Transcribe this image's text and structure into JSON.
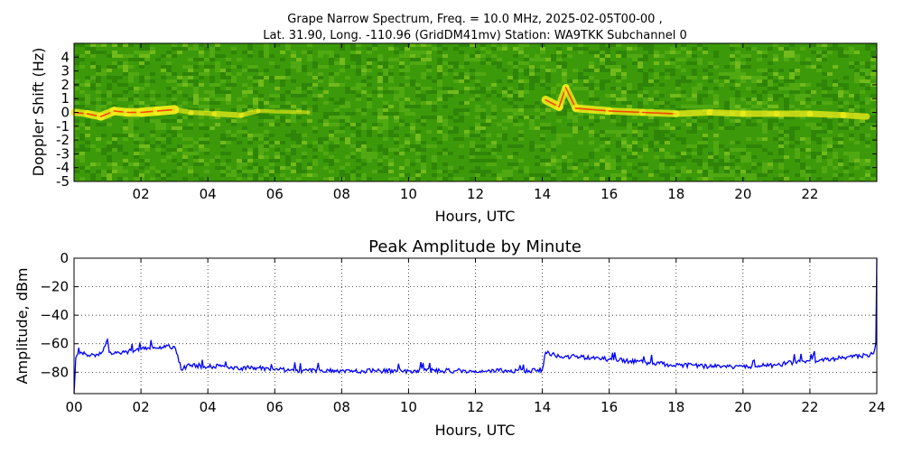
{
  "chart_data": [
    {
      "type": "heatmap",
      "title_line1": "Grape Narrow Spectrum, Freq. = 10.0 MHz, 2025-02-05T00-00 ,",
      "title_line2": "Lat.  31.90, Long. -110.96 (GridDM41mv) Station: WA9TKK Subchannel 0",
      "xlabel": "Hours, UTC",
      "ylabel": "Doppler Shift (Hz)",
      "xlim": [
        0,
        24
      ],
      "ylim": [
        -5,
        5
      ],
      "xticks": [
        2,
        4,
        6,
        8,
        10,
        12,
        14,
        16,
        18,
        20,
        22
      ],
      "xtick_labels": [
        "02",
        "04",
        "06",
        "08",
        "10",
        "12",
        "14",
        "16",
        "18",
        "20",
        "22"
      ],
      "yticks": [
        4,
        3,
        2,
        1,
        0,
        -1,
        -2,
        -3,
        -4,
        -5
      ],
      "ytick_labels": [
        "4",
        "3",
        "2",
        "1",
        "0",
        "-1",
        "-2",
        "-3",
        "-4",
        "-5"
      ],
      "background_color": "#3c9a0a",
      "signal_colors": [
        "#f4f01a",
        "#ff2a00"
      ],
      "signal_trace": [
        {
          "t": 0.0,
          "f": 0.0,
          "s": 0.6
        },
        {
          "t": 0.4,
          "f": -0.1,
          "s": 0.7
        },
        {
          "t": 0.8,
          "f": -0.3,
          "s": 0.8
        },
        {
          "t": 1.2,
          "f": 0.1,
          "s": 0.9
        },
        {
          "t": 1.6,
          "f": 0.0,
          "s": 0.8
        },
        {
          "t": 2.0,
          "f": 0.0,
          "s": 0.9
        },
        {
          "t": 2.5,
          "f": 0.1,
          "s": 0.9
        },
        {
          "t": 3.0,
          "f": 0.2,
          "s": 0.9
        },
        {
          "t": 3.5,
          "f": 0.0,
          "s": 0.3
        },
        {
          "t": 4.2,
          "f": -0.1,
          "s": 0.4
        },
        {
          "t": 5.0,
          "f": -0.2,
          "s": 0.4
        },
        {
          "t": 5.5,
          "f": 0.1,
          "s": 0.3
        },
        {
          "t": 7.0,
          "f": 0.0,
          "s": 0.15
        },
        {
          "t": 14.1,
          "f": 0.9,
          "s": 0.8
        },
        {
          "t": 14.5,
          "f": 0.4,
          "s": 0.9
        },
        {
          "t": 14.7,
          "f": 1.8,
          "s": 0.6
        },
        {
          "t": 15.0,
          "f": 0.3,
          "s": 0.9
        },
        {
          "t": 16.0,
          "f": 0.1,
          "s": 0.7
        },
        {
          "t": 17.0,
          "f": 0.0,
          "s": 0.6
        },
        {
          "t": 18.0,
          "f": -0.1,
          "s": 0.6
        },
        {
          "t": 19.0,
          "f": 0.0,
          "s": 0.5
        },
        {
          "t": 20.0,
          "f": -0.1,
          "s": 0.5
        },
        {
          "t": 21.0,
          "f": -0.1,
          "s": 0.5
        },
        {
          "t": 22.0,
          "f": -0.1,
          "s": 0.5
        },
        {
          "t": 23.0,
          "f": -0.2,
          "s": 0.5
        },
        {
          "t": 23.7,
          "f": -0.3,
          "s": 0.5
        }
      ]
    },
    {
      "type": "line",
      "title": "Peak Amplitude by Minute",
      "xlabel": "Hours, UTC",
      "ylabel": "Amplitude, dBm",
      "xlim": [
        0,
        24
      ],
      "ylim": [
        -95,
        0
      ],
      "grid": true,
      "xticks": [
        0,
        2,
        4,
        6,
        8,
        10,
        12,
        14,
        16,
        18,
        20,
        22,
        24
      ],
      "xtick_labels": [
        "00",
        "02",
        "04",
        "06",
        "08",
        "10",
        "12",
        "14",
        "16",
        "18",
        "20",
        "22",
        "24"
      ],
      "yticks": [
        0,
        -20,
        -40,
        -60,
        -80
      ],
      "ytick_labels": [
        "0",
        "−20",
        "−40",
        "−60",
        "−80"
      ],
      "line_color": "#0000ff",
      "x": [
        0.0,
        0.05,
        0.2,
        0.5,
        0.8,
        1.0,
        1.05,
        1.2,
        1.5,
        2.0,
        2.5,
        3.0,
        3.1,
        3.2,
        3.5,
        4.0,
        4.5,
        5.0,
        5.5,
        6.0,
        7.0,
        8.0,
        9.0,
        10.0,
        11.0,
        12.0,
        13.0,
        13.8,
        14.0,
        14.1,
        14.3,
        14.6,
        15.0,
        15.5,
        16.0,
        16.5,
        17.0,
        17.5,
        18.0,
        18.5,
        19.0,
        20.0,
        21.0,
        21.5,
        22.0,
        22.5,
        23.0,
        23.5,
        23.9,
        23.97,
        24.0
      ],
      "y": [
        -95,
        -70,
        -66,
        -68,
        -67,
        -57,
        -66,
        -67,
        -66,
        -64,
        -63,
        -62,
        -68,
        -78,
        -75,
        -76,
        -76,
        -77,
        -77,
        -78,
        -79,
        -79,
        -79,
        -79,
        -79,
        -79,
        -79,
        -79,
        -78,
        -66,
        -67,
        -70,
        -69,
        -70,
        -71,
        -72,
        -73,
        -74,
        -75,
        -75,
        -76,
        -76,
        -75,
        -73,
        -72,
        -71,
        -70,
        -69,
        -67,
        -60,
        0
      ]
    }
  ]
}
